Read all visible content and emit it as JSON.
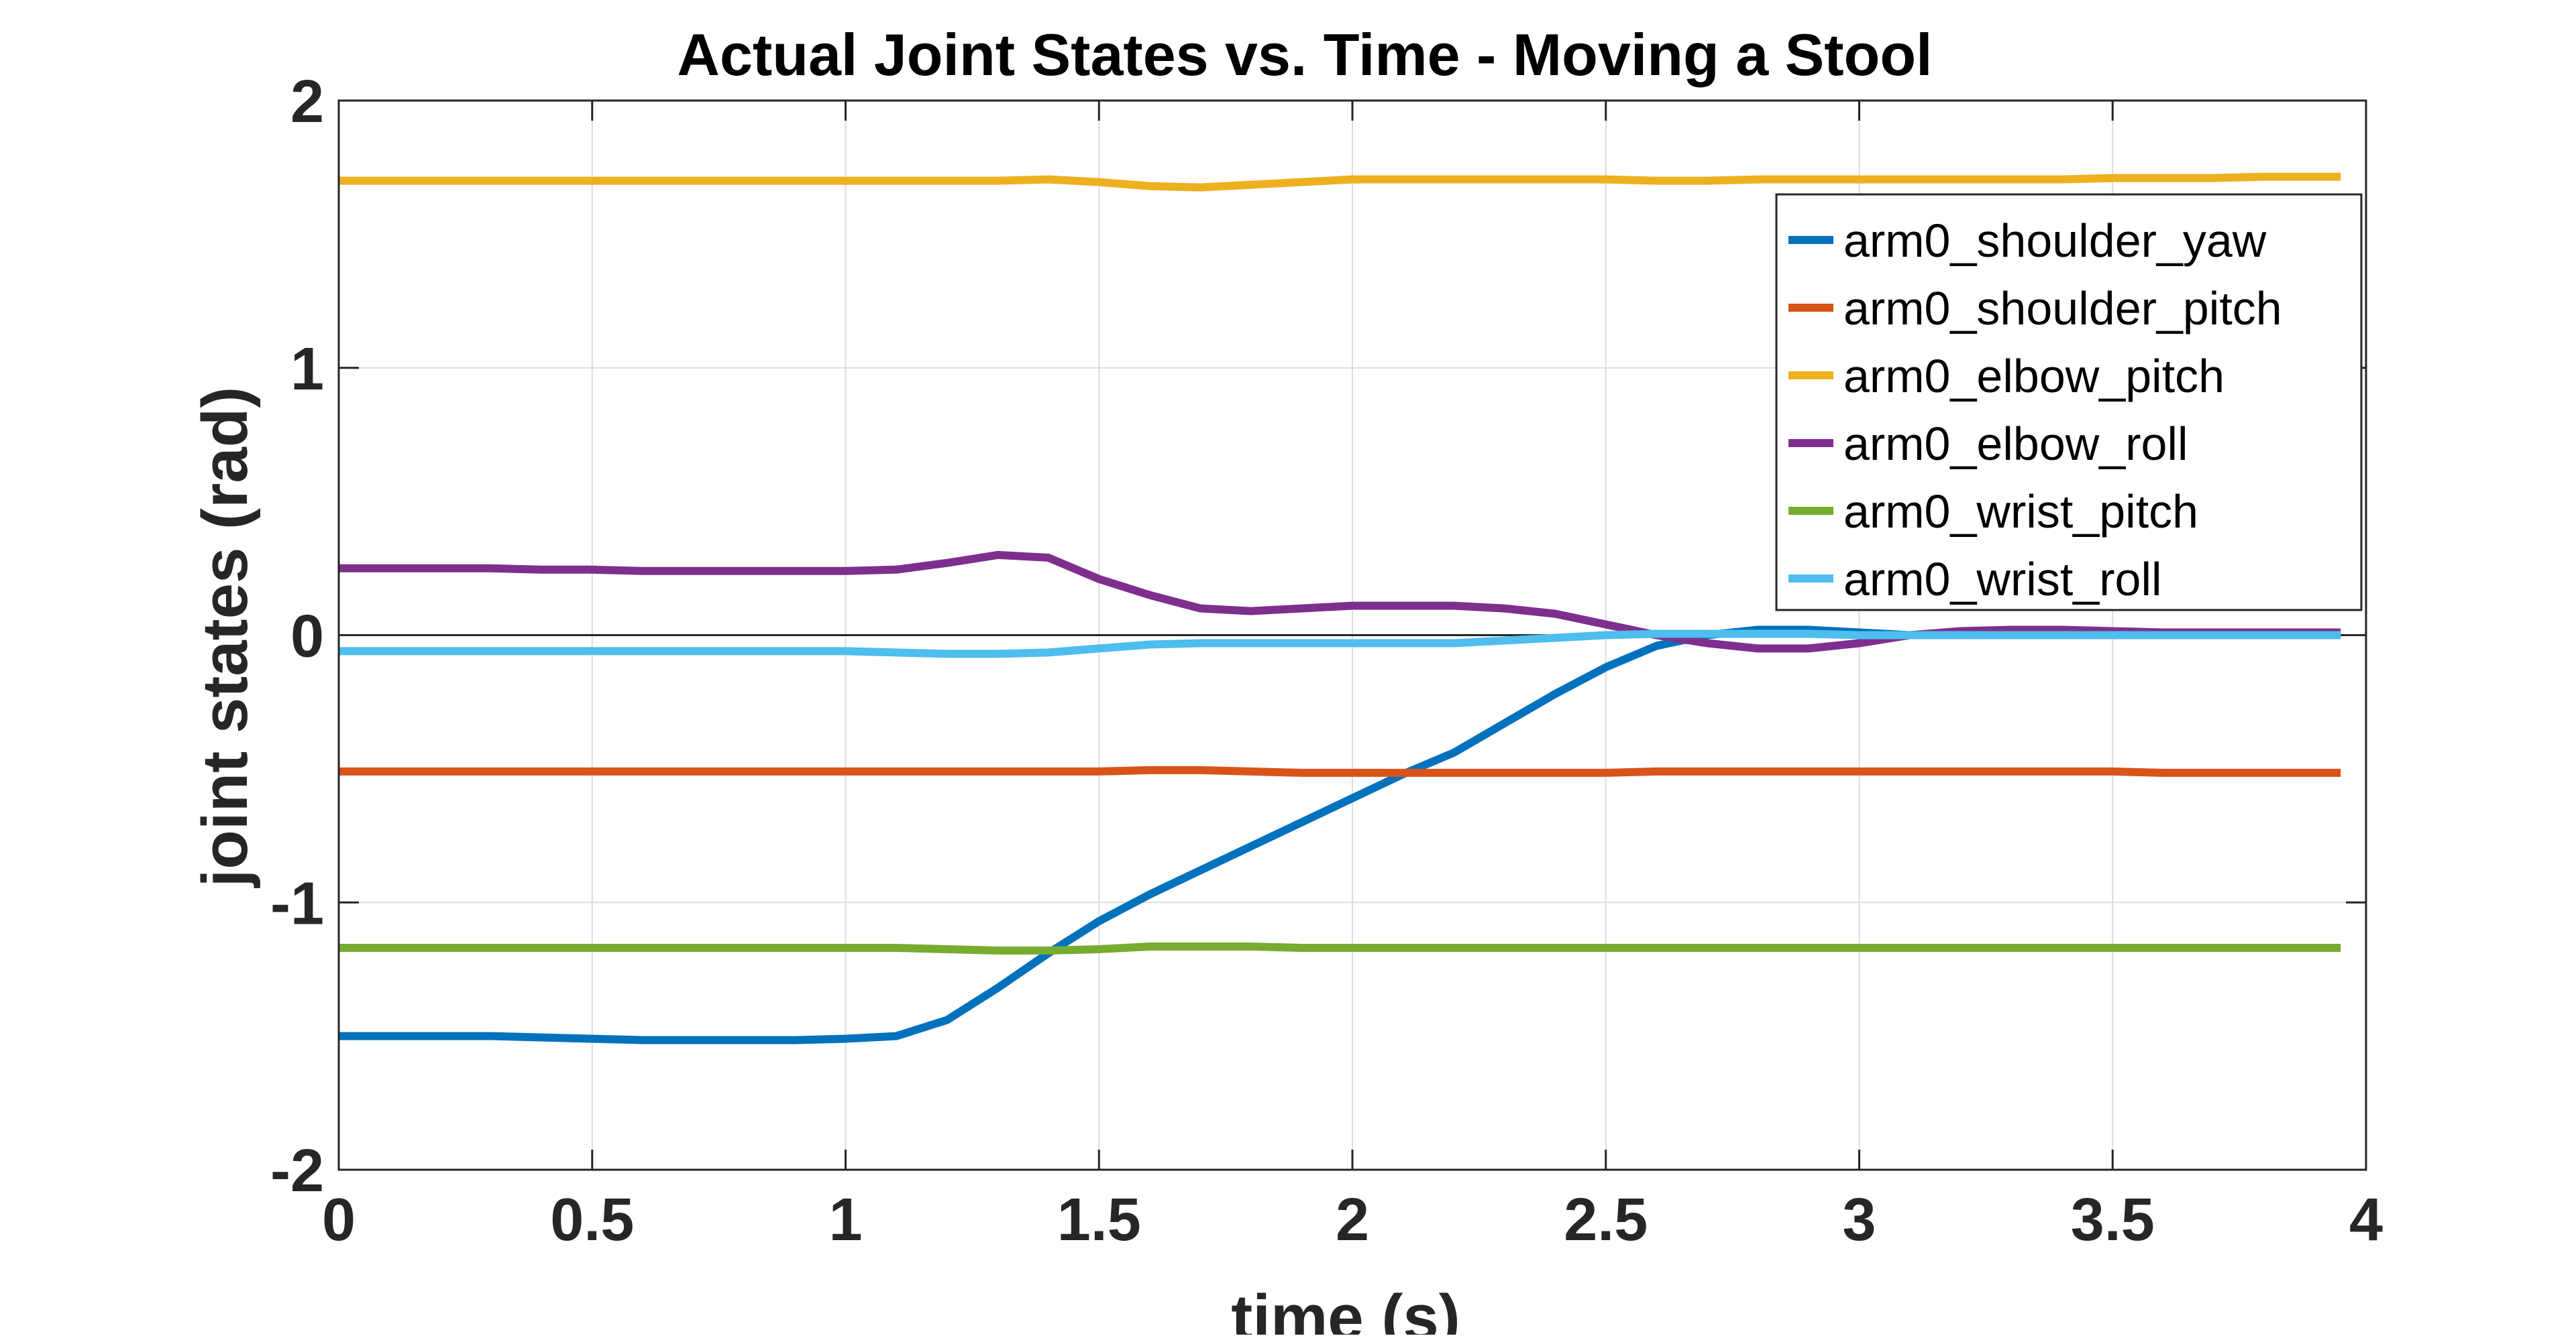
{
  "chart_data": {
    "type": "line",
    "title": "Actual Joint States vs. Time - Moving a Stool",
    "xlabel": "time (s)",
    "ylabel": "joint states (rad)",
    "xlim": [
      0,
      4
    ],
    "ylim": [
      -2,
      2
    ],
    "xticks": [
      0,
      0.5,
      1,
      1.5,
      2,
      2.5,
      3,
      3.5,
      4
    ],
    "xtick_labels": [
      "0",
      "0.5",
      "1",
      "1.5",
      "2",
      "2.5",
      "3",
      "3.5",
      "4"
    ],
    "yticks": [
      2,
      1,
      0,
      -1,
      -2
    ],
    "ytick_labels": [
      "2",
      "1",
      "0",
      "-1",
      "-2"
    ],
    "grid": true,
    "legend_position": "top-right",
    "x": [
      0,
      0.1,
      0.2,
      0.3,
      0.4,
      0.5,
      0.6,
      0.7,
      0.8,
      0.9,
      1.0,
      1.1,
      1.2,
      1.3,
      1.4,
      1.5,
      1.6,
      1.7,
      1.8,
      1.9,
      2.0,
      2.1,
      2.2,
      2.3,
      2.4,
      2.5,
      2.6,
      2.7,
      2.8,
      2.9,
      3.0,
      3.1,
      3.2,
      3.3,
      3.4,
      3.5,
      3.6,
      3.7,
      3.8,
      3.9,
      3.95
    ],
    "series": [
      {
        "name": "arm0_shoulder_yaw",
        "color": "#0072BD",
        "values": [
          -1.5,
          -1.5,
          -1.5,
          -1.5,
          -1.505,
          -1.51,
          -1.515,
          -1.515,
          -1.515,
          -1.515,
          -1.51,
          -1.5,
          -1.44,
          -1.32,
          -1.19,
          -1.07,
          -0.97,
          -0.88,
          -0.79,
          -0.7,
          -0.61,
          -0.52,
          -0.44,
          -0.33,
          -0.22,
          -0.12,
          -0.04,
          0.0,
          0.02,
          0.02,
          0.01,
          0.0,
          0.0,
          0.0,
          0.0,
          0.0,
          0.0,
          0.0,
          0.0,
          0.0,
          0.0
        ]
      },
      {
        "name": "arm0_shoulder_pitch",
        "color": "#D95319",
        "values": [
          -0.51,
          -0.51,
          -0.51,
          -0.51,
          -0.51,
          -0.51,
          -0.51,
          -0.51,
          -0.51,
          -0.51,
          -0.51,
          -0.51,
          -0.51,
          -0.51,
          -0.51,
          -0.51,
          -0.505,
          -0.505,
          -0.51,
          -0.515,
          -0.515,
          -0.515,
          -0.515,
          -0.515,
          -0.515,
          -0.515,
          -0.51,
          -0.51,
          -0.51,
          -0.51,
          -0.51,
          -0.51,
          -0.51,
          -0.51,
          -0.51,
          -0.51,
          -0.515,
          -0.515,
          -0.515,
          -0.515,
          -0.515
        ]
      },
      {
        "name": "arm0_elbow_pitch",
        "color": "#EDB120",
        "values": [
          1.7,
          1.7,
          1.7,
          1.7,
          1.7,
          1.7,
          1.7,
          1.7,
          1.7,
          1.7,
          1.7,
          1.7,
          1.7,
          1.7,
          1.705,
          1.695,
          1.68,
          1.675,
          1.685,
          1.695,
          1.705,
          1.705,
          1.705,
          1.705,
          1.705,
          1.705,
          1.7,
          1.7,
          1.705,
          1.705,
          1.705,
          1.705,
          1.705,
          1.705,
          1.705,
          1.71,
          1.71,
          1.71,
          1.715,
          1.715,
          1.715
        ]
      },
      {
        "name": "arm0_elbow_roll",
        "color": "#7E2F8E",
        "values": [
          0.25,
          0.25,
          0.25,
          0.25,
          0.245,
          0.245,
          0.24,
          0.24,
          0.24,
          0.24,
          0.24,
          0.245,
          0.27,
          0.3,
          0.29,
          0.21,
          0.15,
          0.1,
          0.09,
          0.1,
          0.11,
          0.11,
          0.11,
          0.1,
          0.08,
          0.04,
          0.0,
          -0.03,
          -0.05,
          -0.05,
          -0.03,
          0.0,
          0.015,
          0.02,
          0.02,
          0.015,
          0.01,
          0.01,
          0.01,
          0.01,
          0.01
        ]
      },
      {
        "name": "arm0_wrist_pitch",
        "color": "#77AC30",
        "values": [
          -1.17,
          -1.17,
          -1.17,
          -1.17,
          -1.17,
          -1.17,
          -1.17,
          -1.17,
          -1.17,
          -1.17,
          -1.17,
          -1.17,
          -1.175,
          -1.18,
          -1.18,
          -1.175,
          -1.165,
          -1.165,
          -1.165,
          -1.17,
          -1.17,
          -1.17,
          -1.17,
          -1.17,
          -1.17,
          -1.17,
          -1.17,
          -1.17,
          -1.17,
          -1.17,
          -1.17,
          -1.17,
          -1.17,
          -1.17,
          -1.17,
          -1.17,
          -1.17,
          -1.17,
          -1.17,
          -1.17,
          -1.17
        ]
      },
      {
        "name": "arm0_wrist_roll",
        "color": "#4DBEEE",
        "values": [
          -0.06,
          -0.06,
          -0.06,
          -0.06,
          -0.06,
          -0.06,
          -0.06,
          -0.06,
          -0.06,
          -0.06,
          -0.06,
          -0.065,
          -0.07,
          -0.07,
          -0.065,
          -0.05,
          -0.035,
          -0.03,
          -0.03,
          -0.03,
          -0.03,
          -0.03,
          -0.03,
          -0.02,
          -0.01,
          0.0,
          0.005,
          0.005,
          0.005,
          0.005,
          0.0,
          0.0,
          0.0,
          0.0,
          0.0,
          0.0,
          0.0,
          0.0,
          0.0,
          0.0,
          0.0
        ]
      }
    ]
  }
}
